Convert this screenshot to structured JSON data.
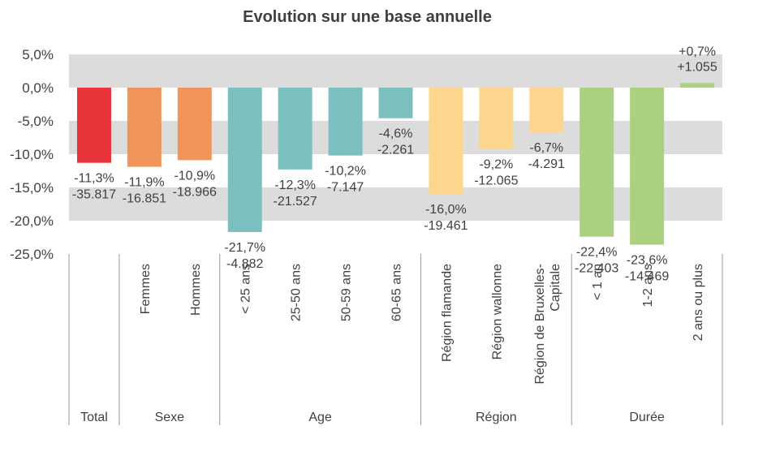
{
  "chart_data": {
    "type": "bar",
    "title": "Evolution sur une base annuelle",
    "ylim": [
      -25,
      5
    ],
    "yticks": [
      5,
      0,
      -5,
      -10,
      -15,
      -20,
      -25
    ],
    "ytick_labels": [
      "5,0%",
      "0,0%",
      "-5,0%",
      "-10,0%",
      "-15,0%",
      "-20,0%",
      "-25,0%"
    ],
    "grid": "alternating horizontal bands",
    "categories": [
      "",
      "Femmes",
      "Hommes",
      "< 25 ans",
      "25-50 ans",
      "50-59 ans",
      "60-65 ans",
      "Région flamande",
      "Région wallonne",
      "Région de Bruxelles-Capitale",
      "< 1 an",
      "1-2 ans",
      "2 ans ou plus"
    ],
    "values": [
      -11.3,
      -11.9,
      -10.9,
      -21.7,
      -12.3,
      -10.2,
      -4.6,
      -16.0,
      -9.2,
      -6.7,
      -22.4,
      -23.6,
      0.7
    ],
    "pct_labels": [
      "-11,3%",
      "-11,9%",
      "-10,9%",
      "-21,7%",
      "-12,3%",
      "-10,2%",
      "-4,6%",
      "-16,0%",
      "-9,2%",
      "-6,7%",
      "-22,4%",
      "-23,6%",
      "+0,7%"
    ],
    "count_labels": [
      "-35.817",
      "-16.851",
      "-18.966",
      "-4.882",
      "-21.527",
      "-7.147",
      "-2.261",
      "-19.461",
      "-12.065",
      "-4.291",
      "-22.403",
      "-14.469",
      "+1.055"
    ],
    "groups": [
      {
        "name": "Total",
        "size": 1
      },
      {
        "name": "Sexe",
        "size": 2
      },
      {
        "name": "Age",
        "size": 4
      },
      {
        "name": "Région",
        "size": 3
      },
      {
        "name": "Durée",
        "size": 3
      }
    ],
    "bar_colors": [
      "#e8343a",
      "#f0955a",
      "#f0955a",
      "#7bbfbf",
      "#7bbfbf",
      "#7bbfbf",
      "#7bbfbf",
      "#fdd68e",
      "#fdd68e",
      "#fdd68e",
      "#acd081",
      "#acd081",
      "#acd081"
    ]
  }
}
